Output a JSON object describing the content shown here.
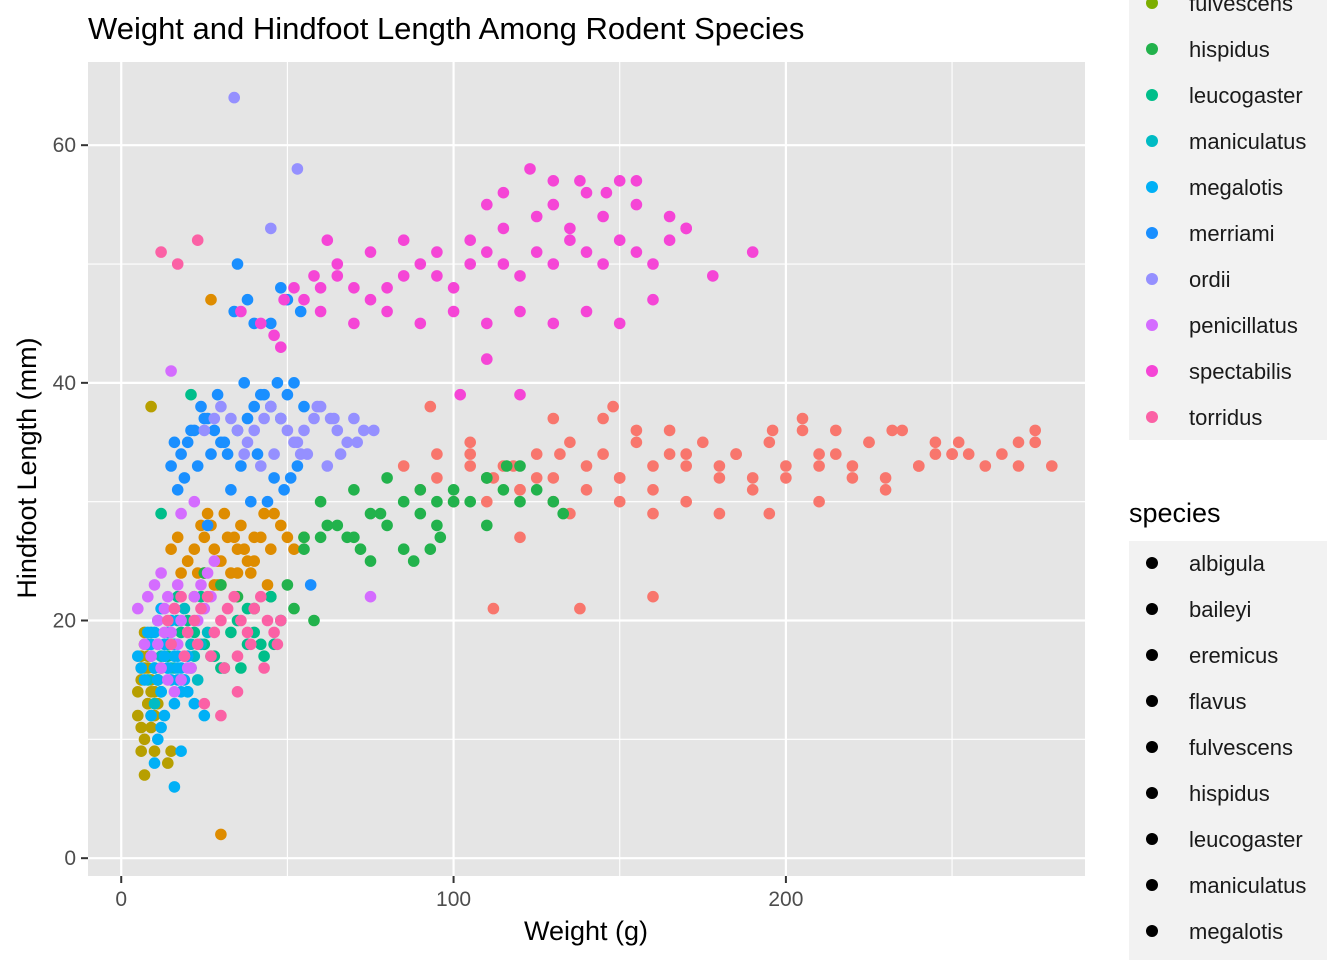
{
  "chart_data": {
    "type": "scatter",
    "title": "Weight and Hindfoot Length Among Rodent Species",
    "xlabel": "Weight (g)",
    "ylabel": "Hindfoot Length (mm)",
    "xlim": [
      -10,
      290
    ],
    "ylim": [
      -1.5,
      67
    ],
    "xticks": [
      0,
      100,
      200
    ],
    "yticks": [
      0,
      20,
      40,
      60
    ],
    "grid": true,
    "background": "#E5E5E5",
    "legends": [
      {
        "title": "",
        "entries": [
          {
            "label": "fulvescens",
            "color": "#7CAE00"
          },
          {
            "label": "hispidus",
            "color": "#22B24C"
          },
          {
            "label": "leucogaster",
            "color": "#00BE8A"
          },
          {
            "label": "maniculatus",
            "color": "#00BBC4"
          },
          {
            "label": "megalotis",
            "color": "#00B0F6"
          },
          {
            "label": "merriami",
            "color": "#1A8FFF"
          },
          {
            "label": "ordii",
            "color": "#9590FF"
          },
          {
            "label": "penicillatus",
            "color": "#D46CFF"
          },
          {
            "label": "spectabilis",
            "color": "#F545D6"
          },
          {
            "label": "torridus",
            "color": "#FB61A5"
          }
        ]
      },
      {
        "title": "species",
        "entries": [
          {
            "label": "albigula",
            "color": "#000000"
          },
          {
            "label": "baileyi",
            "color": "#000000"
          },
          {
            "label": "eremicus",
            "color": "#000000"
          },
          {
            "label": "flavus",
            "color": "#000000"
          },
          {
            "label": "fulvescens",
            "color": "#000000"
          },
          {
            "label": "hispidus",
            "color": "#000000"
          },
          {
            "label": "leucogaster",
            "color": "#000000"
          },
          {
            "label": "maniculatus",
            "color": "#000000"
          },
          {
            "label": "megalotis",
            "color": "#000000"
          }
        ]
      }
    ],
    "series": [
      {
        "name": "albigula",
        "color": "#F8766D",
        "x": [
          85,
          95,
          105,
          112,
          118,
          125,
          132,
          140,
          150,
          160,
          170,
          180,
          190,
          200,
          210,
          220,
          230,
          240,
          250,
          260,
          270,
          275,
          280,
          90,
          100,
          110,
          120,
          130,
          140,
          150,
          160,
          170,
          180,
          190,
          200,
          210,
          220,
          230,
          240,
          250,
          95,
          105,
          115,
          125,
          135,
          145,
          155,
          165,
          175,
          185,
          195,
          205,
          215,
          225,
          235,
          245,
          255,
          265,
          270,
          275,
          110,
          120,
          130,
          135,
          150,
          160,
          170,
          180,
          195,
          210,
          93,
          112,
          138,
          160,
          120,
          145,
          130,
          105,
          148,
          155,
          165,
          185,
          196,
          205,
          215,
          225,
          232,
          245,
          252
        ],
        "y": [
          33,
          32,
          33,
          32,
          33,
          32,
          34,
          33,
          32,
          33,
          34,
          33,
          32,
          33,
          34,
          33,
          32,
          33,
          34,
          33,
          33,
          35,
          33,
          31,
          30,
          32,
          31,
          32,
          31,
          32,
          31,
          33,
          32,
          31,
          32,
          33,
          32,
          31,
          33,
          34,
          34,
          35,
          33,
          34,
          35,
          34,
          35,
          34,
          35,
          34,
          35,
          36,
          34,
          35,
          36,
          35,
          34,
          34,
          35,
          36,
          30,
          31,
          30,
          29,
          30,
          29,
          30,
          29,
          29,
          30,
          38,
          21,
          21,
          22,
          27,
          37,
          37,
          34,
          38,
          36,
          36,
          34,
          36,
          37,
          36,
          35,
          36,
          34,
          35
        ]
      },
      {
        "name": "eremicus",
        "color": "#DE8C00",
        "x": [
          20,
          22,
          25,
          28,
          30,
          32,
          35,
          38,
          40,
          45,
          48,
          50,
          52,
          55,
          18,
          24,
          26,
          29,
          33,
          36,
          42,
          46,
          15,
          20,
          25,
          30,
          35,
          40,
          44,
          27,
          31,
          34,
          37,
          22,
          28,
          39,
          30,
          27,
          43,
          17,
          23,
          29
        ],
        "y": [
          25,
          26,
          27,
          26,
          25,
          27,
          26,
          25,
          27,
          26,
          28,
          27,
          26,
          27,
          24,
          28,
          29,
          25,
          24,
          28,
          27,
          29,
          26,
          25,
          24,
          23,
          24,
          25,
          23,
          28,
          29,
          27,
          26,
          22,
          23,
          24,
          2,
          47,
          29,
          27,
          24,
          23
        ]
      },
      {
        "name": "flavus",
        "color": "#B79F00",
        "x": [
          5,
          6,
          7,
          8,
          9,
          10,
          11,
          6,
          7,
          8,
          9,
          10,
          5,
          6,
          7,
          8,
          9,
          10,
          11,
          12,
          6,
          7,
          8,
          9,
          10,
          7,
          8,
          9,
          6,
          14,
          15
        ],
        "y": [
          14,
          15,
          16,
          13,
          12,
          14,
          13,
          17,
          18,
          16,
          15,
          14,
          12,
          11,
          10,
          13,
          11,
          12,
          15,
          16,
          9,
          7,
          18,
          38,
          9,
          19,
          17,
          14,
          16,
          8,
          9
        ]
      },
      {
        "name": "hispidus",
        "color": "#22B24C",
        "x": [
          25,
          30,
          35,
          40,
          45,
          50,
          55,
          60,
          65,
          70,
          75,
          80,
          85,
          90,
          95,
          100,
          105,
          110,
          115,
          120,
          125,
          130,
          60,
          70,
          80,
          90,
          100,
          110,
          120,
          75,
          85,
          95,
          88,
          93,
          96,
          110,
          55,
          58,
          62,
          72,
          68,
          78,
          52,
          133,
          116
        ],
        "y": [
          24,
          23,
          22,
          21,
          22,
          23,
          26,
          27,
          28,
          27,
          29,
          28,
          30,
          29,
          30,
          31,
          30,
          32,
          31,
          30,
          31,
          30,
          30,
          31,
          32,
          31,
          30,
          32,
          33,
          25,
          26,
          28,
          25,
          26,
          27,
          28,
          27,
          20,
          28,
          26,
          27,
          29,
          21,
          29,
          33
        ]
      },
      {
        "name": "leucogaster",
        "color": "#00BE8A",
        "x": [
          15,
          18,
          20,
          22,
          25,
          28,
          30,
          33,
          35,
          38,
          40,
          42,
          45,
          48,
          12,
          14,
          17,
          21,
          24,
          27,
          31,
          36,
          21,
          11,
          43,
          38,
          46
        ],
        "y": [
          18,
          19,
          20,
          19,
          18,
          17,
          16,
          19,
          20,
          21,
          19,
          18,
          22,
          20,
          29,
          17,
          22,
          16,
          22,
          17,
          16,
          16,
          39,
          15,
          17,
          18,
          18
        ]
      },
      {
        "name": "maniculatus",
        "color": "#00BBC4",
        "x": [
          8,
          10,
          12,
          14,
          16,
          18,
          20,
          22,
          24,
          26,
          9,
          11,
          13,
          15,
          17,
          19,
          21,
          23,
          10,
          12
        ],
        "y": [
          15,
          16,
          17,
          18,
          16,
          15,
          14,
          17,
          18,
          19,
          19,
          18,
          17,
          16,
          20,
          21,
          18,
          15,
          13,
          14
        ]
      },
      {
        "name": "megalotis",
        "color": "#00B0F6",
        "x": [
          5,
          6,
          7,
          8,
          9,
          10,
          11,
          12,
          13,
          14,
          15,
          16,
          17,
          18,
          19,
          20,
          22,
          25,
          8,
          9,
          10,
          11,
          12,
          13,
          14,
          15,
          16,
          17,
          18,
          11,
          13,
          16,
          18,
          10,
          12,
          16,
          9,
          17,
          20,
          14,
          12
        ],
        "y": [
          17,
          16,
          15,
          18,
          17,
          16,
          15,
          14,
          17,
          16,
          15,
          18,
          17,
          16,
          15,
          14,
          13,
          12,
          19,
          18,
          19,
          20,
          21,
          18,
          19,
          20,
          17,
          16,
          14,
          10,
          12,
          6,
          9,
          8,
          11,
          13,
          12,
          15,
          17,
          16,
          14
        ]
      },
      {
        "name": "merriami",
        "color": "#1A8FFF",
        "x": [
          15,
          18,
          20,
          22,
          25,
          28,
          30,
          32,
          35,
          38,
          40,
          42,
          45,
          48,
          50,
          52,
          55,
          17,
          19,
          23,
          27,
          31,
          36,
          41,
          46,
          49,
          53,
          16,
          21,
          26,
          33,
          39,
          44,
          51,
          24,
          29,
          37,
          43,
          47,
          34,
          38,
          48,
          40,
          54,
          45,
          50,
          57,
          26,
          35
        ],
        "y": [
          33,
          34,
          35,
          36,
          37,
          36,
          35,
          34,
          36,
          37,
          38,
          39,
          38,
          37,
          39,
          40,
          38,
          31,
          32,
          33,
          34,
          35,
          33,
          34,
          32,
          31,
          33,
          35,
          36,
          37,
          31,
          30,
          30,
          32,
          38,
          39,
          40,
          39,
          40,
          46,
          47,
          48,
          45,
          46,
          45,
          47,
          23,
          28,
          50
        ]
      },
      {
        "name": "ordii",
        "color": "#9590FF",
        "x": [
          25,
          28,
          30,
          33,
          35,
          38,
          40,
          43,
          45,
          48,
          50,
          53,
          55,
          58,
          60,
          63,
          65,
          68,
          70,
          73,
          46,
          52,
          54,
          37,
          42,
          56,
          62,
          66,
          71,
          76,
          59,
          64,
          34,
          45,
          53
        ],
        "y": [
          36,
          37,
          38,
          37,
          36,
          35,
          36,
          37,
          38,
          37,
          36,
          35,
          36,
          37,
          38,
          37,
          36,
          35,
          37,
          36,
          34,
          35,
          34,
          34,
          33,
          34,
          33,
          34,
          35,
          36,
          38,
          37,
          64,
          53,
          58
        ]
      },
      {
        "name": "penicillatus",
        "color": "#D46CFF",
        "x": [
          5,
          8,
          10,
          12,
          14,
          16,
          18,
          20,
          22,
          24,
          26,
          28,
          7,
          9,
          11,
          13,
          15,
          17,
          19,
          21,
          23,
          25,
          27,
          12,
          14,
          16,
          18,
          20,
          15,
          18,
          22,
          75,
          11,
          13,
          17
        ],
        "y": [
          21,
          22,
          23,
          24,
          22,
          21,
          20,
          19,
          22,
          23,
          24,
          25,
          18,
          17,
          20,
          21,
          19,
          18,
          17,
          16,
          20,
          21,
          22,
          16,
          15,
          14,
          15,
          16,
          41,
          29,
          30,
          22,
          18,
          19,
          23
        ]
      },
      {
        "name": "spectabilis",
        "color": "#F545D6",
        "x": [
          55,
          60,
          65,
          70,
          75,
          80,
          85,
          90,
          95,
          100,
          105,
          110,
          115,
          120,
          125,
          130,
          135,
          140,
          145,
          150,
          155,
          160,
          165,
          170,
          60,
          70,
          80,
          90,
          100,
          110,
          120,
          130,
          140,
          150,
          160,
          65,
          75,
          85,
          95,
          105,
          115,
          125,
          135,
          145,
          155,
          165,
          170,
          110,
          115,
          130,
          140,
          150,
          130,
          155,
          178,
          190,
          123,
          138,
          146,
          52,
          58,
          46,
          48,
          36,
          42,
          110,
          120,
          102,
          49,
          62
        ],
        "y": [
          47,
          48,
          49,
          48,
          47,
          48,
          49,
          50,
          49,
          48,
          50,
          51,
          50,
          49,
          51,
          50,
          52,
          51,
          50,
          52,
          51,
          50,
          52,
          53,
          46,
          45,
          46,
          45,
          46,
          45,
          46,
          45,
          46,
          45,
          47,
          50,
          51,
          52,
          51,
          52,
          53,
          54,
          53,
          54,
          55,
          54,
          53,
          55,
          56,
          55,
          56,
          57,
          57,
          57,
          49,
          51,
          58,
          57,
          56,
          48,
          49,
          44,
          43,
          46,
          45,
          42,
          39,
          39,
          47,
          52
        ]
      },
      {
        "name": "torridus",
        "color": "#FB61A5",
        "x": [
          14,
          16,
          18,
          20,
          22,
          24,
          26,
          28,
          30,
          32,
          34,
          36,
          38,
          40,
          42,
          44,
          46,
          48,
          15,
          19,
          23,
          27,
          31,
          35,
          39,
          43,
          47,
          25,
          30,
          35,
          12,
          23,
          17
        ],
        "y": [
          20,
          21,
          22,
          19,
          20,
          21,
          22,
          19,
          20,
          21,
          22,
          20,
          19,
          21,
          22,
          20,
          19,
          20,
          18,
          17,
          18,
          17,
          16,
          17,
          18,
          16,
          18,
          13,
          12,
          14,
          51,
          52,
          50
        ]
      }
    ]
  }
}
